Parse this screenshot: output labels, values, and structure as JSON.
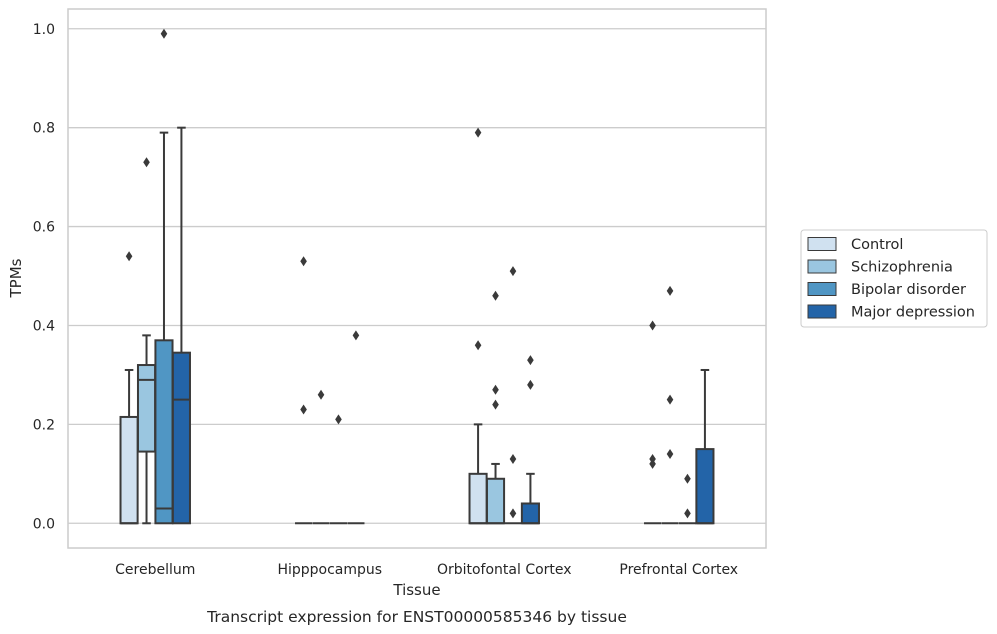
{
  "chart_data": {
    "type": "box",
    "title": "",
    "caption": "Transcript expression for ENST00000585346 by tissue",
    "xlabel": "Tissue",
    "ylabel": "TPMs",
    "ylim": [
      -0.05,
      1.04
    ],
    "yticks": [
      "0.0",
      "0.2",
      "0.4",
      "0.6",
      "0.8",
      "1.0"
    ],
    "ytick_values": [
      0,
      0.2,
      0.4,
      0.6,
      0.8,
      1.0
    ],
    "grid": "horizontal",
    "legend_position": "right",
    "categories": [
      "Cerebellum",
      "Hipppocampus",
      "Orbitofontal Cortex",
      "Prefrontal Cortex"
    ],
    "series": [
      {
        "name": "Control",
        "color": "#d0e1f0",
        "boxes": [
          {
            "whislo": 0,
            "q1": 0,
            "med": 0,
            "q3": 0.215,
            "whishi": 0.31,
            "fliers": [
              0.54
            ]
          },
          {
            "whislo": 0,
            "q1": 0,
            "med": 0,
            "q3": 0,
            "whishi": 0,
            "fliers": [
              0.53,
              0.23
            ]
          },
          {
            "whislo": 0,
            "q1": 0,
            "med": 0,
            "q3": 0.1,
            "whishi": 0.2,
            "fliers": [
              0.79,
              0.36
            ]
          },
          {
            "whislo": 0,
            "q1": 0,
            "med": 0,
            "q3": 0,
            "whishi": 0,
            "fliers": [
              0.4,
              0.13,
              0.12
            ]
          }
        ]
      },
      {
        "name": "Schizophrenia",
        "color": "#9ac6e0",
        "boxes": [
          {
            "whislo": 0,
            "q1": 0.145,
            "med": 0.29,
            "q3": 0.32,
            "whishi": 0.38,
            "fliers": [
              0.73
            ]
          },
          {
            "whislo": 0,
            "q1": 0,
            "med": 0,
            "q3": 0,
            "whishi": 0,
            "fliers": [
              0.26
            ]
          },
          {
            "whislo": 0,
            "q1": 0,
            "med": 0,
            "q3": 0.09,
            "whishi": 0.12,
            "fliers": [
              0.46,
              0.27,
              0.24
            ]
          },
          {
            "whislo": 0,
            "q1": 0,
            "med": 0,
            "q3": 0,
            "whishi": 0,
            "fliers": [
              0.47,
              0.25,
              0.14
            ]
          }
        ]
      },
      {
        "name": "Bipolar disorder",
        "color": "#5096c4",
        "boxes": [
          {
            "whislo": 0,
            "q1": 0,
            "med": 0.03,
            "q3": 0.37,
            "whishi": 0.79,
            "fliers": [
              0.99
            ]
          },
          {
            "whislo": 0,
            "q1": 0,
            "med": 0,
            "q3": 0,
            "whishi": 0,
            "fliers": [
              0.21
            ]
          },
          {
            "whislo": 0,
            "q1": 0,
            "med": 0,
            "q3": 0,
            "whishi": 0,
            "fliers": [
              0.51,
              0.13,
              0.02
            ]
          },
          {
            "whislo": 0,
            "q1": 0,
            "med": 0,
            "q3": 0,
            "whishi": 0,
            "fliers": [
              0.09,
              0.02
            ]
          }
        ]
      },
      {
        "name": "Major depression",
        "color": "#2364a8",
        "boxes": [
          {
            "whislo": 0,
            "q1": 0,
            "med": 0.25,
            "q3": 0.345,
            "whishi": 0.8,
            "fliers": []
          },
          {
            "whislo": 0,
            "q1": 0,
            "med": 0,
            "q3": 0,
            "whishi": 0,
            "fliers": [
              0.38
            ]
          },
          {
            "whislo": 0,
            "q1": 0,
            "med": 0,
            "q3": 0.04,
            "whishi": 0.1,
            "fliers": [
              0.33,
              0.28
            ]
          },
          {
            "whislo": 0,
            "q1": 0,
            "med": 0,
            "q3": 0.15,
            "whishi": 0.31,
            "fliers": []
          }
        ]
      }
    ]
  }
}
